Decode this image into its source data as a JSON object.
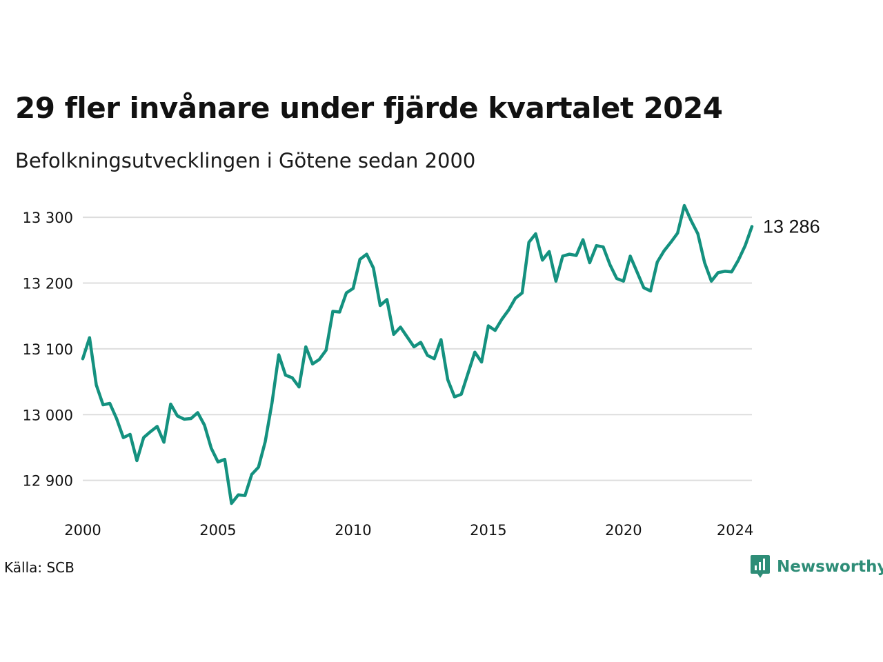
{
  "title": "29 fler invånare under fjärde kvartalet 2024",
  "subtitle": "Befolkningsutvecklingen i Götene sedan 2000",
  "source": "Källa: SCB",
  "brand": {
    "name": "Newsworthy",
    "logo_icon": "newsworthy-logo-icon"
  },
  "colors": {
    "line": "#14917f",
    "grid": "#dddddd",
    "brand": "#2e8d77"
  },
  "chart_data": {
    "type": "line",
    "title": "29 fler invånare under fjärde kvartalet 2024",
    "subtitle": "Befolkningsutvecklingen i Götene sedan 2000",
    "xlabel": "",
    "ylabel": "",
    "ylim": [
      12850,
      13320
    ],
    "xlim": [
      2000.0,
      2024.75
    ],
    "y_ticks": [
      12900,
      13000,
      13100,
      13200,
      13300
    ],
    "y_tick_labels": [
      "12 900",
      "13 000",
      "13 100",
      "13 200",
      "13 300"
    ],
    "x_ticks": [
      2000,
      2005,
      2010,
      2015,
      2020,
      2024
    ],
    "x_tick_labels": [
      "2000",
      "2005",
      "2010",
      "2015",
      "2020",
      "2024"
    ],
    "grid": "horizontal",
    "last_value_label": "13 286",
    "series": [
      {
        "x": [
          2000.0,
          2000.25,
          2000.5,
          2000.75,
          2001.0,
          2001.25,
          2001.5,
          2001.75,
          2002.0,
          2002.25,
          2002.5,
          2002.75,
          2003.0,
          2003.25,
          2003.5,
          2003.75,
          2004.0,
          2004.25,
          2004.5,
          2004.75,
          2005.0,
          2005.25,
          2005.5,
          2005.75,
          2006.0,
          2006.25,
          2006.5,
          2006.75,
          2007.0,
          2007.25,
          2007.5,
          2007.75,
          2008.0,
          2008.25,
          2008.5,
          2008.75,
          2009.0,
          2009.25,
          2009.5,
          2009.75,
          2010.0,
          2010.25,
          2010.5,
          2010.75,
          2011.0,
          2011.25,
          2011.5,
          2011.75,
          2012.0,
          2012.25,
          2012.5,
          2012.75,
          2013.0,
          2013.25,
          2013.5,
          2013.75,
          2014.0,
          2014.25,
          2014.5,
          2014.75,
          2015.0,
          2015.25,
          2015.5,
          2015.75,
          2016.0,
          2016.25,
          2016.5,
          2016.75,
          2017.0,
          2017.25,
          2017.5,
          2017.75,
          2018.0,
          2018.25,
          2018.5,
          2018.75,
          2019.0,
          2019.25,
          2019.5,
          2019.75,
          2020.0,
          2020.25,
          2020.5,
          2020.75,
          2021.0,
          2021.25,
          2021.5,
          2021.75,
          2022.0,
          2022.25,
          2022.5,
          2022.75,
          2023.0,
          2023.25,
          2023.5,
          2023.75,
          2024.0,
          2024.25,
          2024.5,
          2024.75
        ],
        "values": [
          13085,
          13117,
          13045,
          13015,
          13017,
          12994,
          12965,
          12970,
          12930,
          12965,
          12974,
          12982,
          12958,
          13016,
          12998,
          12993,
          12994,
          13003,
          12984,
          12949,
          12928,
          12932,
          12865,
          12878,
          12877,
          12909,
          12920,
          12959,
          13018,
          13091,
          13060,
          13056,
          13042,
          13103,
          13077,
          13084,
          13098,
          13157,
          13156,
          13185,
          13192,
          13236,
          13244,
          13223,
          13166,
          13175,
          13122,
          13133,
          13118,
          13103,
          13110,
          13090,
          13085,
          13114,
          13053,
          13027,
          13031,
          13063,
          13095,
          13080,
          13135,
          13128,
          13145,
          13159,
          13177,
          13185,
          13262,
          13275,
          13235,
          13248,
          13203,
          13241,
          13244,
          13242,
          13266,
          13231,
          13257,
          13255,
          13228,
          13207,
          13203,
          13241,
          13217,
          13193,
          13188,
          13232,
          13249,
          13262,
          13276,
          13318,
          13295,
          13275,
          13231,
          13203,
          13216,
          13218,
          13217,
          13235,
          13257,
          13286
        ]
      }
    ]
  }
}
